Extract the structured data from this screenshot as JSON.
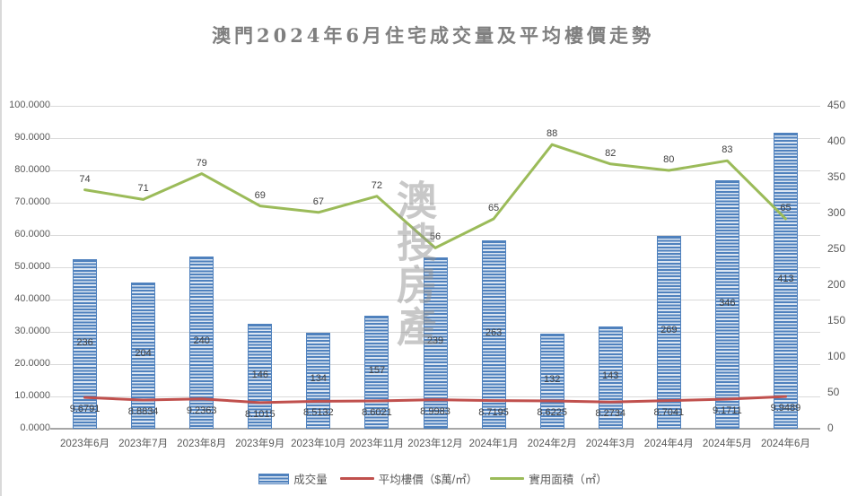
{
  "watermark": {
    "text": "澳搜房產"
  },
  "chart_data": {
    "type": "bar",
    "subtype": "combo-bar-line",
    "title": "澳門2024年6月住宅成交量及平均樓價走勢",
    "categories": [
      "2023年6月",
      "2023年7月",
      "2023年8月",
      "2023年9月",
      "2023年10月",
      "2023年11月",
      "2023年12月",
      "2024年1月",
      "2024年2月",
      "2024年3月",
      "2024年4月",
      "2024年5月",
      "2024年6月"
    ],
    "series": [
      {
        "name": "成交量",
        "type": "bar",
        "axis": "right",
        "color": "#4f81bd",
        "stripe_light": "#dce6f2",
        "values": [
          236,
          204,
          240,
          146,
          134,
          157,
          239,
          263,
          132,
          143,
          269,
          346,
          413
        ]
      },
      {
        "name": "平均樓價（$萬/㎡）",
        "type": "line",
        "axis": "left",
        "color": "#c0504d",
        "label_position": "below",
        "values": [
          9.6791,
          8.8834,
          9.2363,
          8.1015,
          8.5132,
          8.6021,
          8.9983,
          8.7195,
          8.6225,
          8.2734,
          8.7041,
          9.1711,
          9.9489
        ],
        "labels": [
          "9.6791",
          "8.8834",
          "9.2363",
          "8.1015",
          "8.5132",
          "8.6021",
          "8.9983",
          "8.7195",
          "8.6225",
          "8.2734",
          "8.7041",
          "9.1711",
          "9.9489"
        ]
      },
      {
        "name": "實用面積（㎡）",
        "type": "line",
        "axis": "left",
        "color": "#9bbb59",
        "label_position": "above",
        "values": [
          74,
          71,
          79,
          69,
          67,
          72,
          56,
          65,
          88,
          82,
          80,
          83,
          65
        ]
      }
    ],
    "left_axis": {
      "min": 0,
      "max": 100,
      "ticks": [
        "100.0000",
        "90.0000",
        "80.0000",
        "70.0000",
        "60.0000",
        "50.0000",
        "40.0000",
        "30.0000",
        "20.0000",
        "10.0000",
        "0.0000"
      ]
    },
    "right_axis": {
      "min": 0,
      "max": 450,
      "ticks": [
        "450",
        "400",
        "350",
        "300",
        "250",
        "200",
        "150",
        "100",
        "50",
        "0"
      ]
    },
    "grid": true,
    "legend_position": "bottom"
  }
}
